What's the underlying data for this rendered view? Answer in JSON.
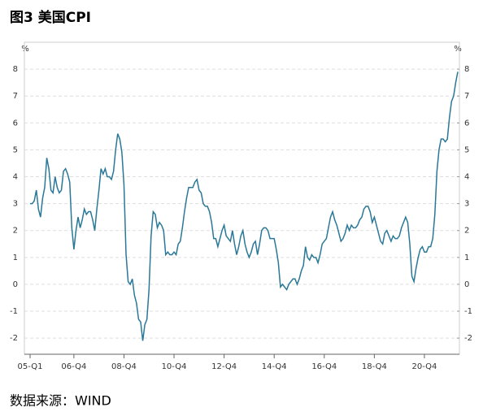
{
  "chart_data": {
    "type": "line",
    "title": "图3 美国CPI",
    "source": "数据来源：WIND",
    "y_unit": "%",
    "y2_unit": "%",
    "categories": [
      "05-Q1",
      null,
      null,
      null,
      null,
      null,
      null,
      null,
      null,
      null,
      null,
      null,
      null,
      null,
      null,
      null,
      null,
      null,
      null,
      null,
      null,
      "06-Q4",
      null,
      null,
      null,
      null,
      null,
      null,
      null,
      null,
      null,
      null,
      null,
      null,
      null,
      null,
      null,
      null,
      null,
      null,
      null,
      null,
      null,
      null,
      null,
      "08-Q4",
      null,
      null,
      null,
      null,
      null,
      null,
      null,
      null,
      null,
      null,
      null,
      null,
      null,
      null,
      null,
      null,
      null,
      null,
      null,
      null,
      null,
      null,
      null,
      "10-Q4",
      null,
      null,
      null,
      null,
      null,
      null,
      null,
      null,
      null,
      null,
      null,
      null,
      null,
      null,
      null,
      null,
      null,
      null,
      null,
      null,
      null,
      null,
      null,
      "12-Q4",
      null,
      null,
      null,
      null,
      null,
      null,
      null,
      null,
      null,
      null,
      null,
      null,
      null,
      null,
      null,
      null,
      null,
      null,
      null,
      null,
      null,
      null,
      null,
      "14-Q4",
      null,
      null,
      null,
      null,
      null,
      null,
      null,
      null,
      null,
      null,
      null,
      null,
      null,
      null,
      null,
      null,
      null,
      null,
      null,
      null,
      null,
      null,
      null,
      "16-Q4",
      null,
      null,
      null,
      null,
      null,
      null,
      null,
      null,
      null,
      null,
      null,
      null,
      null,
      null,
      null,
      null,
      null,
      null,
      null,
      null,
      null,
      null,
      null,
      "18-Q4",
      null,
      null,
      null,
      null,
      null,
      null,
      null,
      null,
      null,
      null,
      null,
      null,
      null,
      null,
      null,
      null,
      null,
      null,
      null,
      null,
      null,
      null,
      null,
      "20-Q4",
      null,
      null,
      null,
      null,
      null,
      null,
      null,
      null,
      null,
      null,
      null,
      null,
      null,
      null,
      null,
      null
    ],
    "series": [
      {
        "color": "#2a7898",
        "values": [
          3.0,
          3.0,
          3.1,
          3.5,
          2.8,
          2.5,
          3.2,
          3.6,
          4.7,
          4.3,
          3.5,
          3.4,
          4.0,
          3.6,
          3.4,
          3.5,
          4.2,
          4.3,
          4.1,
          3.8,
          2.1,
          1.3,
          2.0,
          2.5,
          2.1,
          2.4,
          2.8,
          2.6,
          2.7,
          2.7,
          2.4,
          2.0,
          2.8,
          3.5,
          4.3,
          4.1,
          4.3,
          4.0,
          4.0,
          3.9,
          4.2,
          5.0,
          5.6,
          5.4,
          4.9,
          3.7,
          1.1,
          0.1,
          0.0,
          0.2,
          -0.4,
          -0.7,
          -1.3,
          -1.4,
          -2.1,
          -1.5,
          -1.3,
          -0.2,
          1.8,
          2.7,
          2.6,
          2.1,
          2.3,
          2.2,
          2.0,
          1.1,
          1.2,
          1.1,
          1.1,
          1.2,
          1.1,
          1.5,
          1.6,
          2.1,
          2.7,
          3.2,
          3.6,
          3.6,
          3.6,
          3.8,
          3.9,
          3.5,
          3.4,
          3.0,
          2.9,
          2.9,
          2.7,
          2.3,
          1.7,
          1.7,
          1.4,
          1.7,
          2.0,
          2.2,
          1.8,
          1.7,
          1.6,
          2.0,
          1.5,
          1.1,
          1.4,
          1.8,
          2.0,
          1.5,
          1.2,
          1.0,
          1.2,
          1.5,
          1.6,
          1.1,
          1.5,
          2.0,
          2.1,
          2.1,
          2.0,
          1.7,
          1.7,
          1.7,
          1.3,
          0.8,
          -0.1,
          0.0,
          -0.1,
          -0.2,
          0.0,
          0.1,
          0.2,
          0.2,
          0.0,
          0.2,
          0.5,
          0.7,
          1.4,
          1.0,
          0.9,
          1.1,
          1.0,
          1.0,
          0.8,
          1.1,
          1.5,
          1.6,
          1.7,
          2.1,
          2.5,
          2.7,
          2.4,
          2.2,
          1.9,
          1.6,
          1.7,
          1.9,
          2.2,
          2.0,
          2.2,
          2.1,
          2.1,
          2.2,
          2.4,
          2.5,
          2.8,
          2.9,
          2.9,
          2.7,
          2.3,
          2.5,
          2.2,
          1.9,
          1.6,
          1.5,
          1.9,
          2.0,
          1.8,
          1.6,
          1.8,
          1.7,
          1.7,
          1.8,
          2.1,
          2.3,
          2.5,
          2.3,
          1.5,
          0.3,
          0.1,
          0.6,
          1.0,
          1.3,
          1.4,
          1.2,
          1.2,
          1.4,
          1.4,
          1.7,
          2.6,
          4.2,
          5.0,
          5.4,
          5.4,
          5.3,
          5.4,
          6.2,
          6.8,
          7.0,
          7.5,
          7.9
        ]
      }
    ],
    "ylim": [
      -2.6,
      9
    ],
    "yticks": [
      -2,
      -1,
      0,
      1,
      2,
      3,
      4,
      5,
      6,
      7,
      8
    ],
    "y2lim": [
      -2.6,
      9
    ],
    "y2ticks": [
      -2,
      -1,
      0,
      1,
      2,
      3,
      4,
      5,
      6,
      7,
      8
    ],
    "grid": true
  }
}
